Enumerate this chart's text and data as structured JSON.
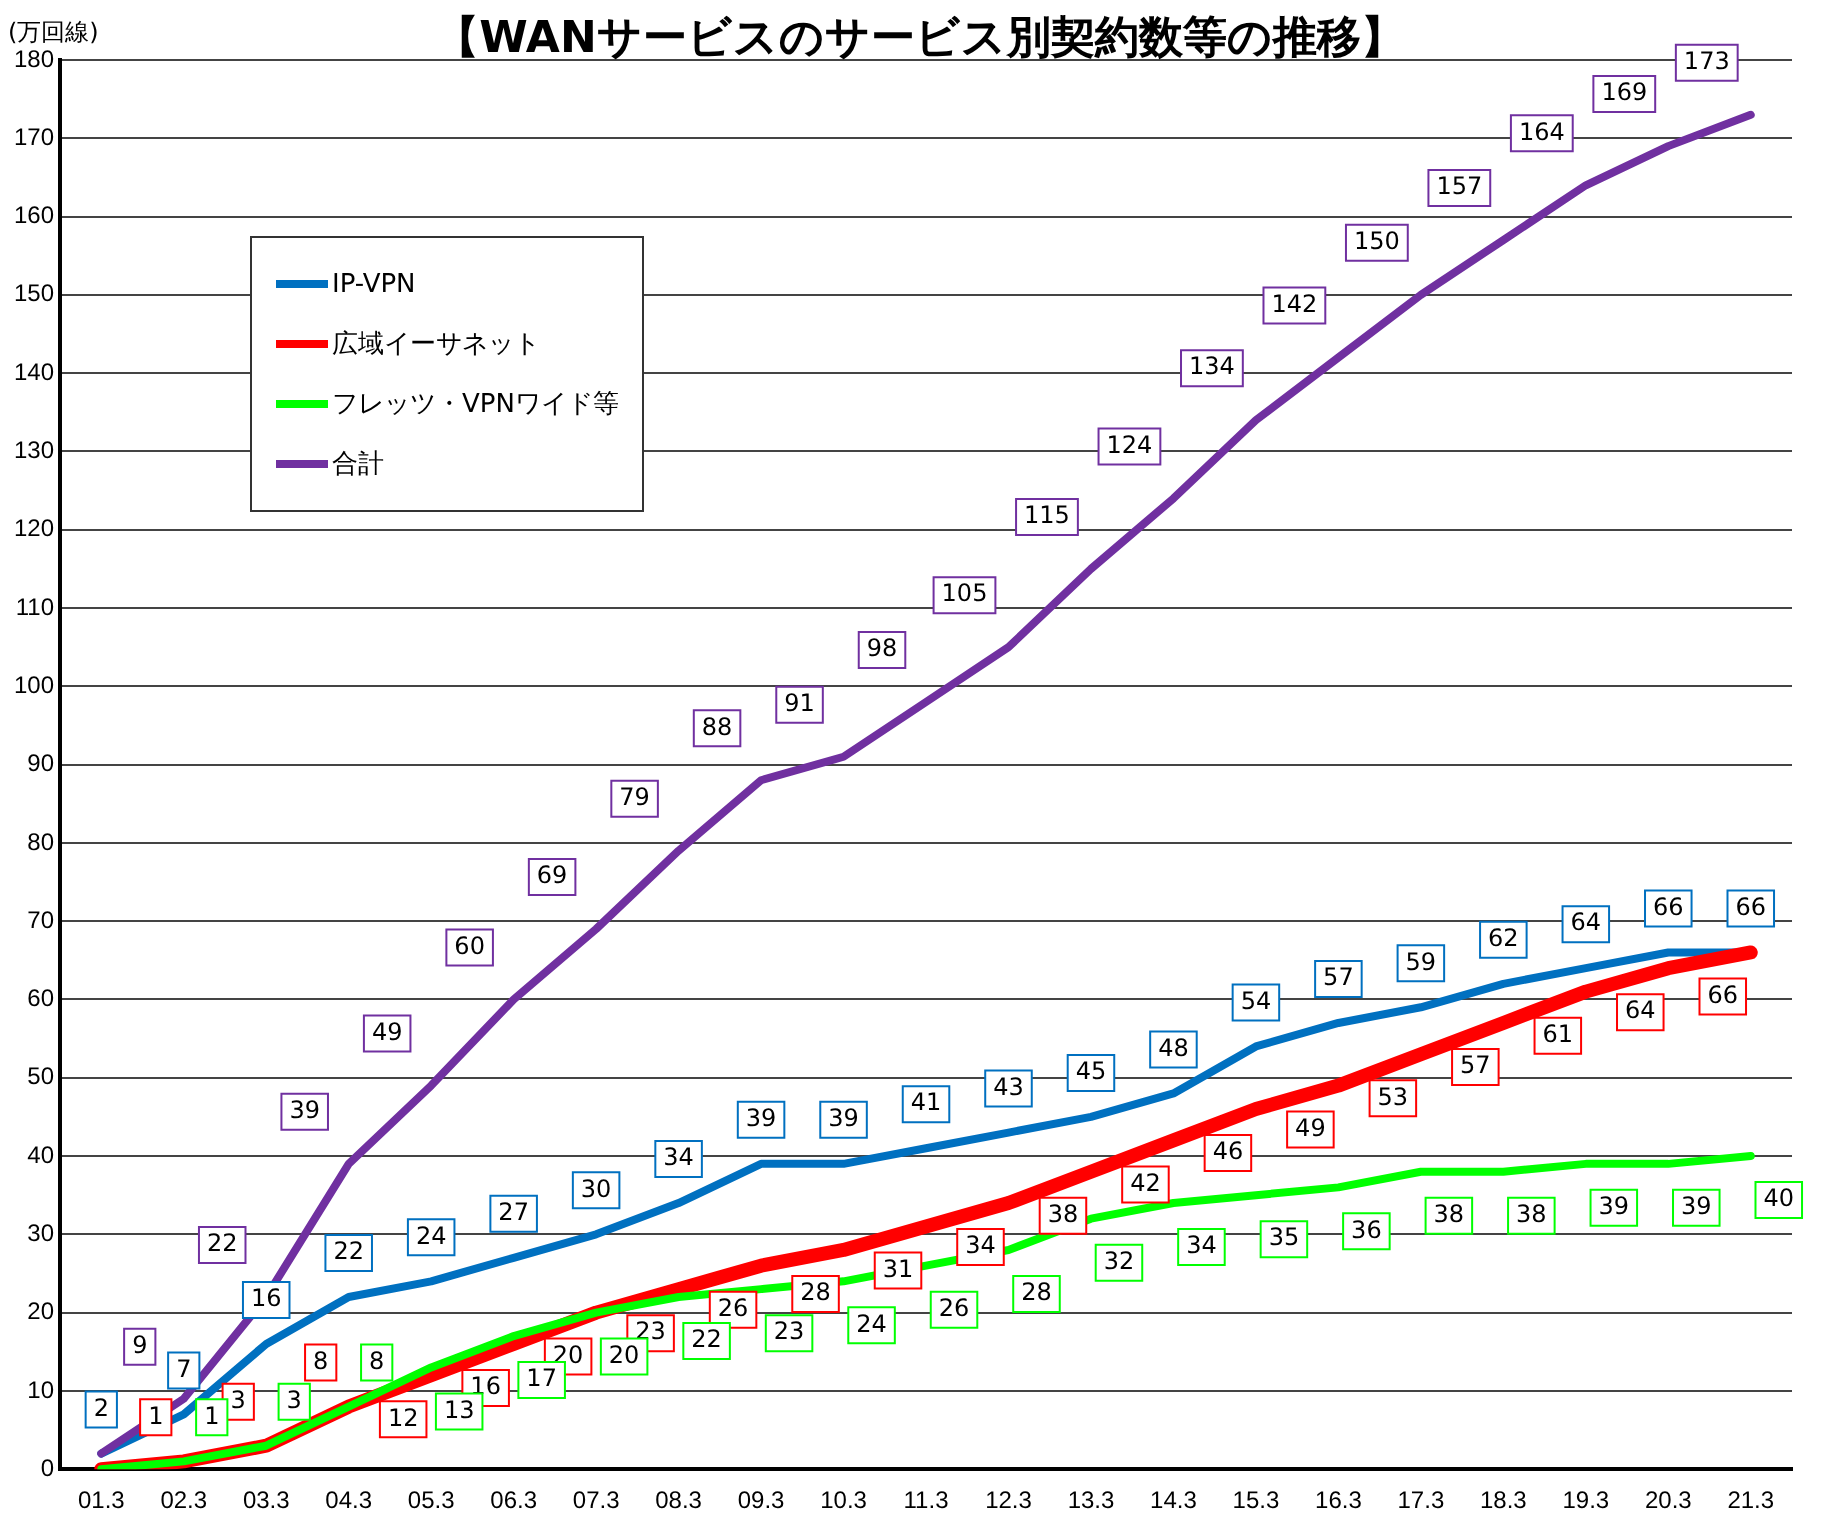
{
  "chart_data": {
    "type": "line",
    "title": "【WANサービスのサービス別契約数等の推移】",
    "ylabel": "(万回線)",
    "categories": [
      "01.3",
      "02.3",
      "03.3",
      "04.3",
      "05.3",
      "06.3",
      "07.3",
      "08.3",
      "09.3",
      "10.3",
      "11.3",
      "12.3",
      "13.3",
      "14.3",
      "15.3",
      "16.3",
      "17.3",
      "18.3",
      "19.3",
      "20.3",
      "21.3"
    ],
    "series": [
      {
        "name": "IP-VPN",
        "color": "#0070c0",
        "values": [
          2,
          7,
          16,
          22,
          24,
          27,
          30,
          34,
          39,
          39,
          41,
          43,
          45,
          48,
          54,
          57,
          59,
          62,
          64,
          66,
          66
        ],
        "value_labels": [
          "2",
          "7",
          "16",
          "22",
          "24",
          "27",
          "30",
          "34",
          "39",
          "39",
          "41",
          "43",
          "45",
          "48",
          "54",
          "57",
          "59",
          "62",
          "64",
          "66",
          "66"
        ]
      },
      {
        "name": "広域イーサネット",
        "color": "#ff0000",
        "values": [
          0,
          1,
          3,
          8,
          12,
          16,
          20,
          23,
          26,
          28,
          31,
          34,
          38,
          42,
          46,
          49,
          53,
          57,
          61,
          64,
          66
        ],
        "value_labels": [
          null,
          "1",
          "3",
          "8",
          "12",
          "16",
          "20",
          "23",
          "26",
          "28",
          "31",
          "34",
          "38",
          "42",
          "46",
          "49",
          "53",
          "57",
          "61",
          "64",
          "66"
        ]
      },
      {
        "name": "フレッツ・VPNワイド等",
        "color": "#00ff00",
        "values": [
          0,
          1,
          3,
          8,
          13,
          17,
          20,
          22,
          23,
          24,
          26,
          28,
          32,
          34,
          35,
          36,
          38,
          38,
          39,
          39,
          40
        ],
        "value_labels": [
          null,
          "1",
          "3",
          "8",
          "13",
          "17",
          "20",
          "22",
          "23",
          "24",
          "26",
          "28",
          "32",
          "34",
          "35",
          "36",
          "38",
          "38",
          "39",
          "39",
          "40"
        ]
      },
      {
        "name": "合計",
        "color": "#7030a0",
        "values": [
          2,
          9,
          22,
          39,
          49,
          60,
          69,
          79,
          88,
          91,
          98,
          105,
          115,
          124,
          134,
          142,
          150,
          157,
          164,
          169,
          173
        ],
        "value_labels": [
          null,
          "9",
          "22",
          "39",
          "49",
          "60",
          "69",
          "79",
          "88",
          "91",
          "98",
          "105",
          "115",
          "124",
          "134",
          "142",
          "150",
          "157",
          "164",
          "169",
          "173"
        ]
      }
    ],
    "ylim": [
      0,
      180
    ],
    "yticks": [
      0,
      10,
      20,
      30,
      40,
      50,
      60,
      70,
      80,
      90,
      100,
      110,
      120,
      130,
      140,
      150,
      160,
      170,
      180
    ],
    "grid": "y",
    "legend": "top left",
    "marker": "none",
    "line_style": "solid",
    "data_labels": true
  }
}
